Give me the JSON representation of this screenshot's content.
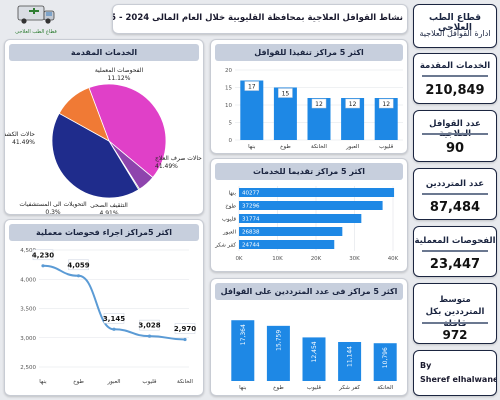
{
  "header": {
    "title": "نشاط القوافل العلاجية بمحافظة القليوبية خلال العام المالى 2024 - 2025",
    "dept_line1": "قطاع الطب العلاجى",
    "dept_line2": "ادارة القوافل العلاجية",
    "logo_text": "قطاع الطب العلاجى"
  },
  "colors": {
    "bar_blue": "#1e88e5",
    "header_gray": "#c7cfdd",
    "pie_pink": "#e040c8",
    "pie_navy": "#1f2c8c",
    "pie_orange": "#f07a35",
    "line_blue": "#5b9bd5"
  },
  "kpis": [
    {
      "label": "الخدمات المقدمة",
      "value": "210,849"
    },
    {
      "label": "عدد القوافل العلاجية",
      "value": "90"
    },
    {
      "label": "عدد المترددين",
      "value": "87,484"
    },
    {
      "label": "الفحوصات المعملية",
      "value": "23,447"
    },
    {
      "label": "متوسط المترددين بكل قافلة",
      "value": "972"
    }
  ],
  "credit": {
    "line1": "By",
    "line2": "Sheref elhalwane"
  },
  "charts": [
    {
      "type": "pie",
      "title": "الخدمات المقدمة",
      "slices": [
        {
          "label": "حالات صرف العلاج",
          "pct_label": "41.49%",
          "value": 41.49,
          "color": "#e040c8"
        },
        {
          "label": "التثقيف الصحى",
          "pct_label": "4.91%",
          "value": 4.91,
          "color": "#8e44ad"
        },
        {
          "label": "التحويلات الى المستشفيات",
          "pct_label": "0.3%",
          "value": 0.3,
          "color": "#2e7d32"
        },
        {
          "label": "حالات الكشف",
          "pct_label": "41.49%",
          "value": 41.49,
          "color": "#1f2c8c"
        },
        {
          "label": "الفحوصات المعملية",
          "pct_label": "11.12%",
          "value": 11.12,
          "color": "#f07a35"
        }
      ]
    },
    {
      "type": "bar",
      "title": "اكثر 5 مراكز تنفيذا للقوافل",
      "categories": [
        "بنها",
        "طوخ",
        "الخانكة",
        "العبور",
        "قليوب"
      ],
      "values": [
        17,
        15,
        12,
        12,
        12
      ],
      "ylim": [
        0,
        20
      ]
    },
    {
      "type": "bar",
      "orientation": "horizontal",
      "title": "اكثر 5 مراكز تقديما للخدمات",
      "categories": [
        "بنها",
        "طوخ",
        "قليوب",
        "العبور",
        "كفر شكر"
      ],
      "values": [
        40277,
        37296,
        31774,
        26838,
        24744
      ],
      "value_labels": [
        "40277",
        "37296",
        "31774",
        "26838",
        "24744"
      ],
      "xticks": [
        "0K",
        "10K",
        "20K",
        "30K",
        "40K"
      ],
      "xlim": [
        0,
        40000
      ]
    },
    {
      "type": "line",
      "title": "اكثر 5مراكز اجراء فحوصات معملية",
      "categories": [
        "بنها",
        "طوخ",
        "العبور",
        "قليوب",
        "الخانكة"
      ],
      "values": [
        4230,
        4059,
        3145,
        3028,
        2970
      ],
      "value_labels": [
        "4,230",
        "4,059",
        "3,145",
        "3,028",
        "2,970"
      ],
      "yticks": [
        "4,500",
        "4,000",
        "3,500",
        "3,000",
        "2,500"
      ],
      "ylim": [
        2500,
        4500
      ]
    },
    {
      "type": "bar",
      "title": "اكثر 5 مراكز فى عدد المترددين على القوافل",
      "categories": [
        "بنها",
        "طوخ",
        "قليوب",
        "كفر شكر",
        "الخانكة"
      ],
      "values": [
        17364,
        15759,
        12454,
        11144,
        10796
      ],
      "value_labels": [
        "17,364",
        "15,759",
        "12,454",
        "11,144",
        "10,796"
      ],
      "ylim": [
        0,
        20000
      ]
    }
  ]
}
